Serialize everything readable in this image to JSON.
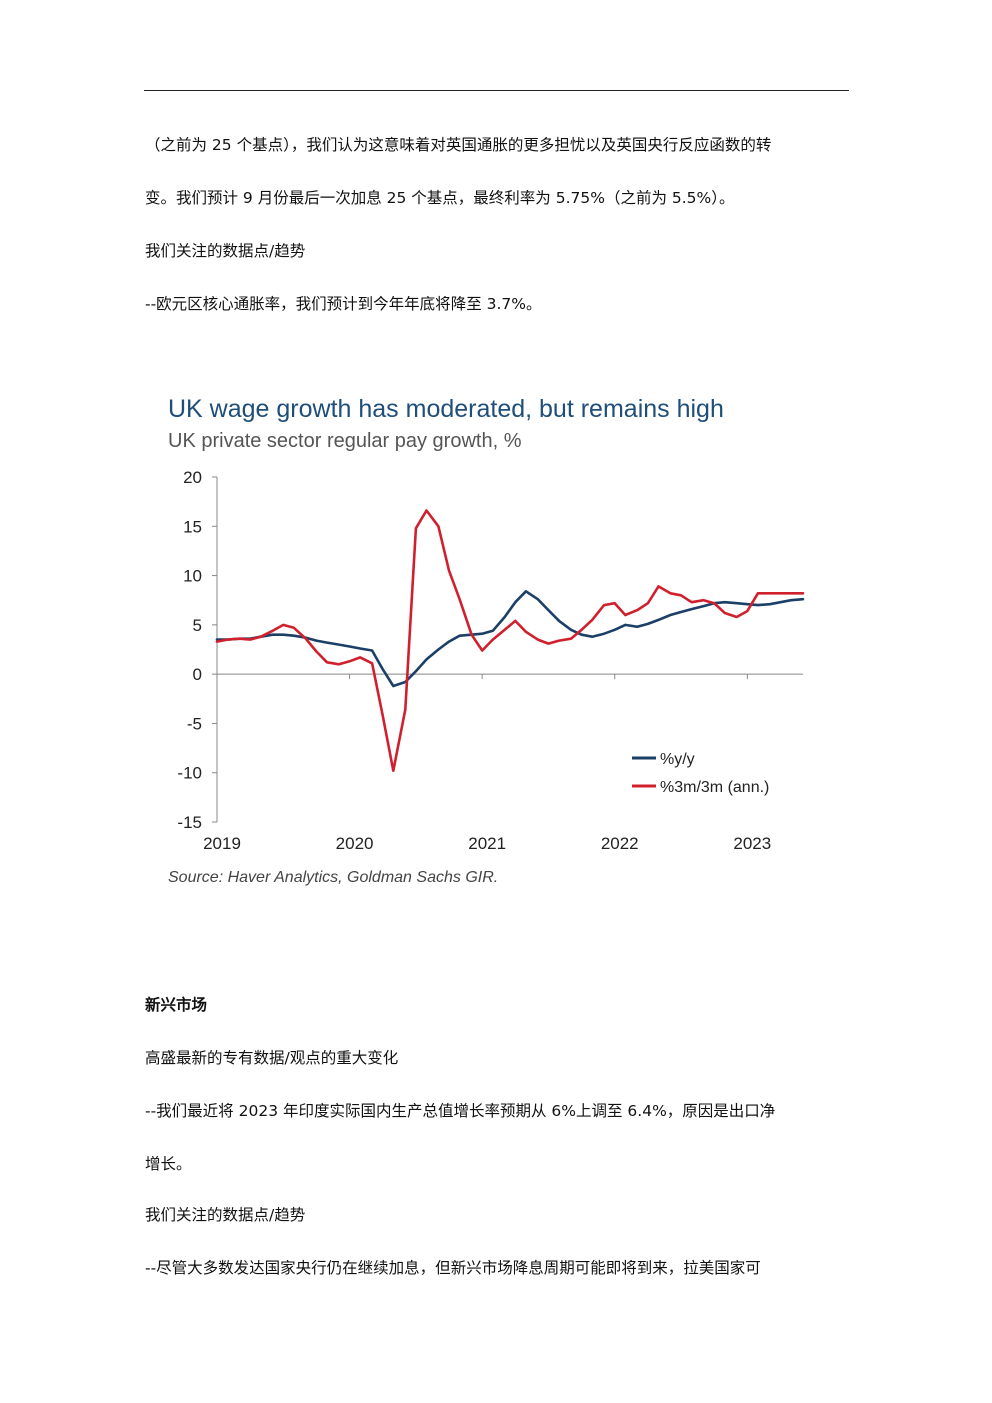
{
  "document": {
    "para1_line1": "（之前为 25 个基点），我们认为这意味着对英国通胀的更多担忧以及英国央行反应函数的转",
    "para1_line2": "变。我们预计 9 月份最后一次加息 25 个基点，最终利率为 5.75%（之前为 5.5%）。",
    "watch1_heading": "我们关注的数据点/趋势",
    "watch1_item": "--欧元区核心通胀率，我们预计到今年年底将降至 3.7%。",
    "em_heading": "新兴市场",
    "em_sub": "高盛最新的专有数据/观点的重大变化",
    "em_item_line1": "--我们最近将 2023 年印度实际国内生产总值增长率预期从 6%上调至 6.4%，原因是出口净",
    "em_item_line2": "增长。",
    "watch2_heading": "我们关注的数据点/趋势",
    "watch2_item": "--尽管大多数发达国家央行仍在继续加息，但新兴市场降息周期可能即将到来，拉美国家可"
  },
  "chart_data": {
    "type": "line",
    "title": "UK wage growth has moderated, but remains high",
    "subtitle": "UK private sector regular pay growth, %",
    "source": "Source: Haver Analytics, Goldman Sachs GIR.",
    "xlabel": "",
    "ylabel": "",
    "ylim": [
      -15,
      20
    ],
    "yticks": [
      20,
      15,
      10,
      5,
      0,
      -5,
      -10,
      -15
    ],
    "xlim": [
      2019.0,
      2023.42
    ],
    "xticks": [
      "2019",
      "2020",
      "2021",
      "2022",
      "2023"
    ],
    "legend_position": "bottom-right",
    "grid": false,
    "colors": {
      "title": "#1f4e79",
      "subtitle": "#555555",
      "yoy": "#1b3f66",
      "mom3": "#d0202e",
      "axis": "#888888",
      "source": "#444444"
    },
    "series": [
      {
        "name": "%y/y",
        "key": "yoy",
        "x": [
          2019.0,
          2019.08,
          2019.17,
          2019.25,
          2019.33,
          2019.42,
          2019.5,
          2019.58,
          2019.67,
          2019.75,
          2019.83,
          2019.92,
          2020.0,
          2020.08,
          2020.17,
          2020.25,
          2020.33,
          2020.42,
          2020.5,
          2020.58,
          2020.67,
          2020.75,
          2020.83,
          2020.92,
          2021.0,
          2021.08,
          2021.17,
          2021.25,
          2021.33,
          2021.42,
          2021.5,
          2021.58,
          2021.67,
          2021.75,
          2021.83,
          2021.92,
          2022.0,
          2022.08,
          2022.17,
          2022.25,
          2022.33,
          2022.42,
          2022.5,
          2022.58,
          2022.67,
          2022.75,
          2022.83,
          2022.92,
          2023.0,
          2023.08,
          2023.17,
          2023.25,
          2023.33,
          2023.42
        ],
        "values": [
          3.5,
          3.5,
          3.6,
          3.6,
          3.8,
          4.0,
          4.0,
          3.9,
          3.7,
          3.4,
          3.2,
          3.0,
          2.8,
          2.6,
          2.4,
          0.5,
          -1.2,
          -0.8,
          0.3,
          1.5,
          2.5,
          3.3,
          3.9,
          4.0,
          4.1,
          4.4,
          5.8,
          7.3,
          8.4,
          7.6,
          6.5,
          5.4,
          4.5,
          4.0,
          3.8,
          4.1,
          4.5,
          5.0,
          4.8,
          5.1,
          5.5,
          6.0,
          6.3,
          6.6,
          6.9,
          7.2,
          7.3,
          7.2,
          7.1,
          7.0,
          7.1,
          7.3,
          7.5,
          7.6
        ]
      },
      {
        "name": "%3m/3m (ann.)",
        "key": "mom3",
        "x": [
          2019.0,
          2019.08,
          2019.17,
          2019.25,
          2019.33,
          2019.42,
          2019.5,
          2019.58,
          2019.67,
          2019.75,
          2019.83,
          2019.92,
          2020.0,
          2020.08,
          2020.17,
          2020.25,
          2020.33,
          2020.42,
          2020.5,
          2020.58,
          2020.67,
          2020.75,
          2020.83,
          2020.92,
          2021.0,
          2021.08,
          2021.17,
          2021.25,
          2021.33,
          2021.42,
          2021.5,
          2021.58,
          2021.67,
          2021.75,
          2021.83,
          2021.92,
          2022.0,
          2022.08,
          2022.17,
          2022.25,
          2022.33,
          2022.42,
          2022.5,
          2022.58,
          2022.67,
          2022.75,
          2022.83,
          2022.92,
          2023.0,
          2023.08,
          2023.17,
          2023.25,
          2023.33,
          2023.42
        ],
        "values": [
          3.3,
          3.5,
          3.6,
          3.5,
          3.8,
          4.4,
          5.0,
          4.7,
          3.6,
          2.3,
          1.2,
          1.0,
          1.3,
          1.7,
          1.1,
          -4.2,
          -9.8,
          -3.6,
          14.8,
          16.6,
          15.0,
          10.5,
          7.6,
          4.0,
          2.4,
          3.5,
          4.5,
          5.4,
          4.3,
          3.5,
          3.1,
          3.4,
          3.6,
          4.5,
          5.5,
          7.0,
          7.2,
          6.0,
          6.5,
          7.2,
          8.9,
          8.2,
          8.0,
          7.3,
          7.5,
          7.2,
          6.2,
          5.8,
          6.4,
          8.2,
          8.2,
          8.2,
          8.2,
          8.2
        ]
      }
    ]
  }
}
